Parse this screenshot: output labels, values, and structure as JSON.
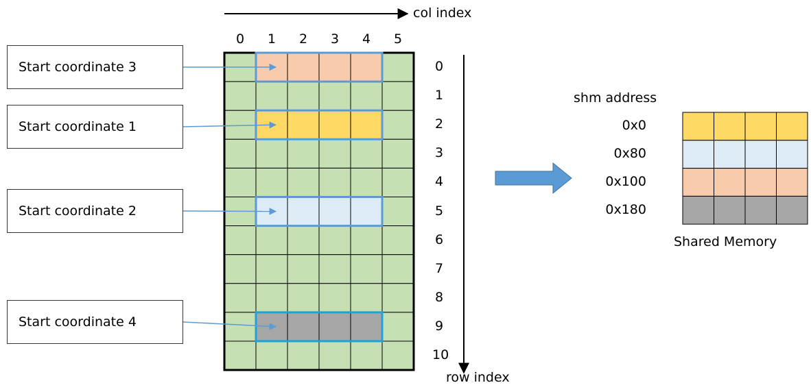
{
  "axes": {
    "col_label": "col index",
    "row_label": "row index",
    "col_indices": [
      "0",
      "1",
      "2",
      "3",
      "4",
      "5"
    ],
    "row_indices": [
      "0",
      "1",
      "2",
      "3",
      "4",
      "5",
      "6",
      "7",
      "8",
      "9",
      "10"
    ]
  },
  "start_boxes": [
    {
      "label": "Start coordinate 3",
      "row": 0,
      "color": "#f8cbad"
    },
    {
      "label": "Start coordinate 1",
      "row": 2,
      "color": "#ffd966"
    },
    {
      "label": "Start coordinate 2",
      "row": 5,
      "color": "#ddebf7"
    },
    {
      "label": "Start coordinate 4",
      "row": 9,
      "color": "#a6a6a6"
    }
  ],
  "grid": {
    "rows": 11,
    "cols": 6,
    "cell_color": "#c6e0b4",
    "highlight_cols": [
      1,
      2,
      3,
      4
    ]
  },
  "shared_memory": {
    "address_header": "shm address",
    "title": "Shared Memory",
    "rows": [
      {
        "address": "0x0",
        "color": "#ffd966"
      },
      {
        "address": "0x80",
        "color": "#ddebf7"
      },
      {
        "address": "0x100",
        "color": "#f8cbad"
      },
      {
        "address": "0x180",
        "color": "#a6a6a6"
      }
    ]
  },
  "colors": {
    "outline_blue": "#5b9bd5",
    "outline_cyan": "#1fa2d8",
    "arrow_blue": "#5b9bd5"
  }
}
